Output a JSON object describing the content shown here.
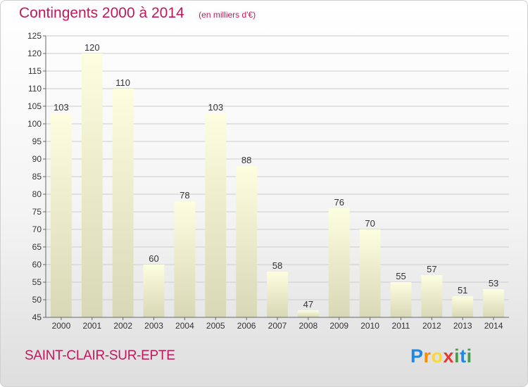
{
  "header": {
    "title": "Contingents 2000 à 2014",
    "unit": "(en milliers d'€)"
  },
  "footer": {
    "commune": "SAINT-CLAIR-SUR-EPTE",
    "brand": [
      "P",
      "r",
      "o",
      "x",
      "i",
      "t",
      "i"
    ]
  },
  "colors": {
    "title": "#c2185b",
    "bar_top": "#fdfde0",
    "bar_bottom": "#d8d8b6",
    "grid": "#cccccc"
  },
  "chart_data": {
    "type": "bar",
    "title": "Contingents 2000 à 2014",
    "subtitle": "(en milliers d'€)",
    "xlabel": "",
    "ylabel": "",
    "categories": [
      "2000",
      "2001",
      "2002",
      "2003",
      "2004",
      "2005",
      "2006",
      "2007",
      "2008",
      "2009",
      "2010",
      "2011",
      "2012",
      "2013",
      "2014"
    ],
    "values": [
      103,
      120,
      110,
      60,
      78,
      103,
      88,
      58,
      47,
      76,
      70,
      55,
      57,
      51,
      53
    ],
    "ylim": [
      45,
      125
    ],
    "yticks": [
      45,
      50,
      55,
      60,
      65,
      70,
      75,
      80,
      85,
      90,
      95,
      100,
      105,
      110,
      115,
      120,
      125
    ],
    "grid": true,
    "legend": "none"
  }
}
